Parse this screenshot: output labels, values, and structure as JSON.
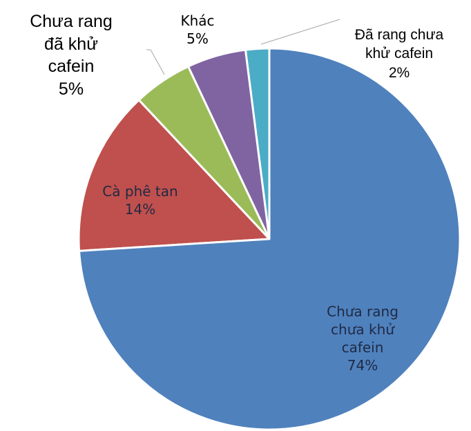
{
  "chart_data": {
    "type": "pie",
    "categories": [
      "Chưa rang chưa khử cafein",
      "Cà phê tan",
      "Chưa rang đã khử cafein",
      "Khác",
      "Đã rang chưa khử cafein"
    ],
    "values": [
      74,
      14,
      5,
      5,
      2
    ],
    "value_labels": [
      "74%",
      "14%",
      "5%",
      "5%",
      "2%"
    ],
    "colors": [
      "#4f81bd",
      "#c0504d",
      "#9bbb59",
      "#8064a2",
      "#4bacc6"
    ]
  }
}
